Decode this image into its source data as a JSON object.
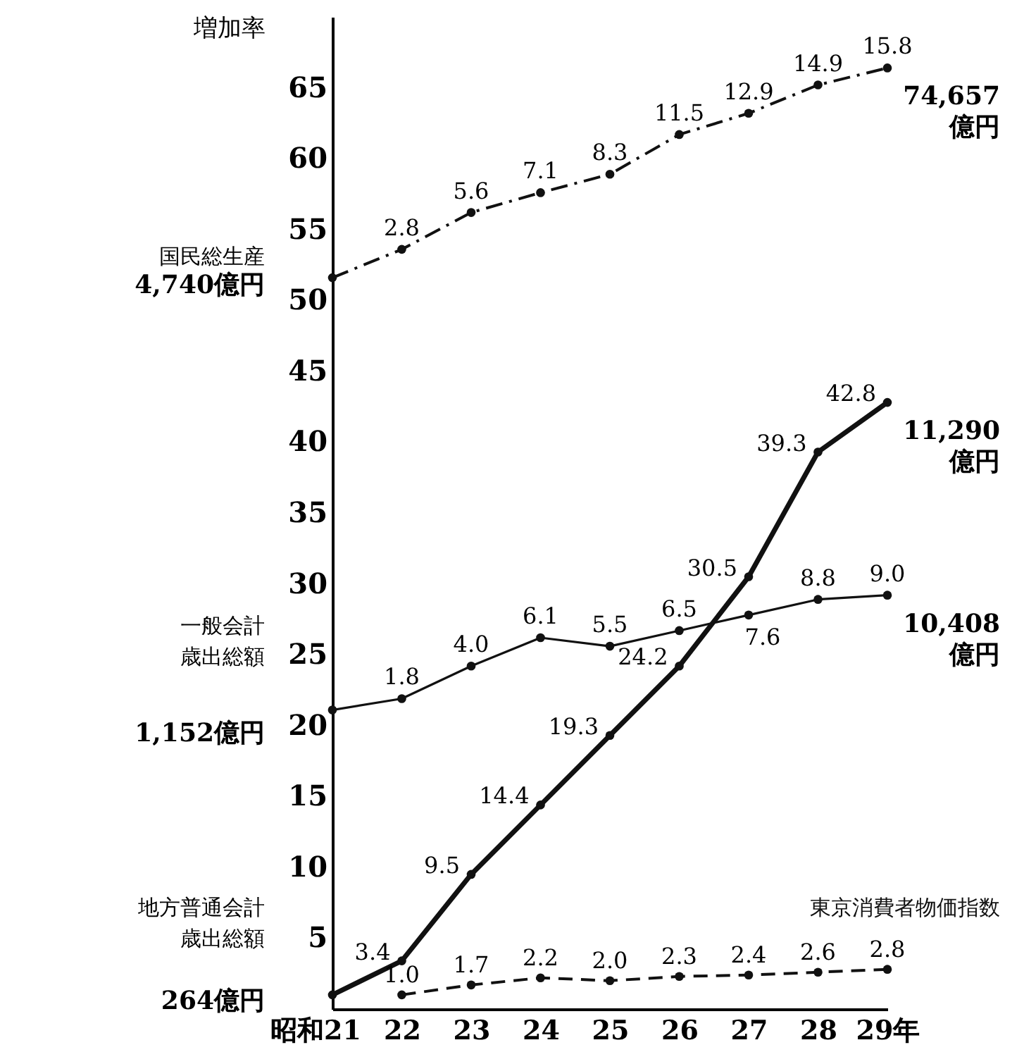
{
  "chart_data": {
    "type": "line",
    "ylabel": "増加率",
    "categories": [
      "昭和21",
      "22",
      "23",
      "24",
      "25",
      "26",
      "27",
      "28",
      "29年"
    ],
    "series": [
      {
        "color": "#111111",
        "line_style": "dashdot",
        "values": [
          51.6,
          53.6,
          56.2,
          57.6,
          58.9,
          61.7,
          63.2,
          65.2,
          66.4
        ]
      },
      {
        "color": "#111111",
        "line_style": "solid",
        "values": [
          21.1,
          21.9,
          24.2,
          26.2,
          25.6,
          26.7,
          27.8,
          28.9,
          29.2
        ]
      },
      {
        "color": "#111111",
        "line_style": "solid",
        "values": [
          1.0,
          3.4,
          9.5,
          14.4,
          19.3,
          24.2,
          30.5,
          39.3,
          42.8
        ],
        "value_labels": [
          null,
          "3.4",
          "9.5",
          "14.4",
          "19.3",
          "24.2",
          "30.5",
          "39.3",
          "42.8"
        ]
      },
      {
        "name": "東京消費者物価指数",
        "color": "#111111",
        "line_style": "dashed",
        "values": [
          null,
          1.0,
          1.7,
          2.2,
          2.0,
          2.3,
          2.4,
          2.6,
          2.8
        ],
        "value_labels": [
          null,
          "1.0",
          "1.7",
          "2.2",
          "2.0",
          "2.3",
          "2.4",
          "2.6",
          "2.8"
        ]
      }
    ],
    "annotations": [
      "国民総生産",
      "4,740億円",
      "一般会計",
      "歳出総額",
      "1,152億円",
      "地方普通会計",
      "歳出総額",
      "264億円",
      {
        "text": "74,657\n億円",
        "x": "29年",
        "y": 66.4
      },
      {
        "text": "11,290\n億円",
        "x": "29年",
        "y": 42.8
      },
      {
        "text": "10,408\n億円",
        "x": "29年",
        "y": 29.2
      },
      {
        "text": "2.8",
        "x": "22",
        "y": 53.6
      },
      {
        "text": "5.6",
        "x": "23",
        "y": 56.2
      },
      {
        "text": "7.1",
        "x": "24",
        "y": 57.6
      },
      {
        "text": "8.3",
        "x": "25",
        "y": 58.9
      },
      {
        "text": "11.5",
        "x": "26",
        "y": 61.7
      },
      {
        "text": "12.9",
        "x": "27",
        "y": 63.2
      },
      {
        "text": "14.9",
        "x": "28",
        "y": 65.2
      },
      {
        "text": "15.8",
        "x": "29年",
        "y": 66.4
      },
      {
        "text": "1.8",
        "x": "22",
        "y": 21.9
      },
      {
        "text": "4.0",
        "x": "23",
        "y": 24.2
      },
      {
        "text": "6.1",
        "x": "24",
        "y": 26.2
      },
      {
        "text": "5.5",
        "x": "25",
        "y": 25.6
      },
      {
        "text": "6.5",
        "x": "26",
        "y": 26.7
      },
      {
        "text": "7.6",
        "x": "27",
        "y": 27.8
      },
      {
        "text": "8.8",
        "x": "28",
        "y": 28.9
      },
      {
        "text": "9.0",
        "x": "29年",
        "y": 29.2
      }
    ],
    "ylim": [
      0,
      70
    ],
    "yticks": [
      5,
      10,
      15,
      20,
      25,
      30,
      35,
      40,
      45,
      50,
      55,
      60,
      65
    ],
    "grid": false,
    "marker": "circle"
  }
}
